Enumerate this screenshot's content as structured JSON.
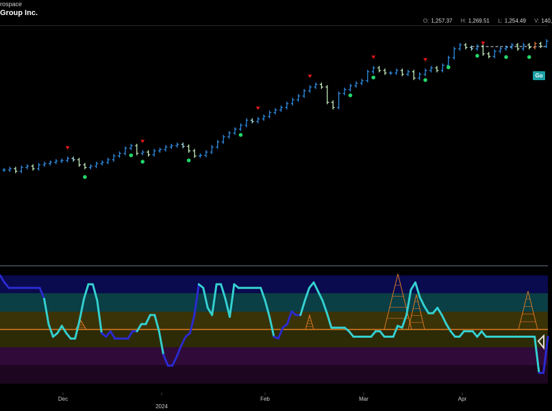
{
  "header": {
    "sector": "rospace",
    "name": "Group Inc.",
    "quote": [
      {
        "key": "O:",
        "value": "1,257.37"
      },
      {
        "key": "H:",
        "value": "1,269.51"
      },
      {
        "key": "L:",
        "value": "1,254.49"
      },
      {
        "key": "V:",
        "value": "140,"
      }
    ]
  },
  "go_label": "Go",
  "colors": {
    "up_blue": "#2f8fe6",
    "weak_up": "#a7e0e6",
    "weak_down": "#c7f0c0",
    "down_orange": "#e07a3a",
    "buy_dot": "#22d66a",
    "sell_arrow": "#e01818",
    "osc_strong": "#2a2ad0",
    "osc_weak": "#34d0d0",
    "zero_line": "#e07a22"
  },
  "chart_data": [
    {
      "type": "line",
      "kind": "ohlc-price",
      "x_tick_labels": [
        "Dec",
        "Feb",
        "Mar",
        "Apr"
      ],
      "year_label": "2024",
      "closes": [
        1060,
        1062,
        1058,
        1064,
        1066,
        1062,
        1068,
        1070,
        1072,
        1074,
        1075,
        1078,
        1076,
        1068,
        1064,
        1066,
        1070,
        1072,
        1076,
        1082,
        1086,
        1094,
        1098,
        1086,
        1088,
        1084,
        1090,
        1092,
        1096,
        1098,
        1100,
        1097,
        1090,
        1082,
        1083,
        1088,
        1096,
        1104,
        1112,
        1118,
        1124,
        1130,
        1138,
        1136,
        1140,
        1144,
        1150,
        1154,
        1158,
        1164,
        1170,
        1176,
        1184,
        1190,
        1194,
        1190,
        1166,
        1158,
        1180,
        1186,
        1192,
        1196,
        1200,
        1214,
        1220,
        1216,
        1212,
        1212,
        1216,
        1210,
        1214,
        1204,
        1210,
        1216,
        1220,
        1216,
        1224,
        1236,
        1250,
        1256,
        1252,
        1250,
        1254,
        1242,
        1238,
        1246,
        1250,
        1252,
        1256,
        1250,
        1256,
        1252,
        1258,
        1254,
        1262
      ],
      "buy_signals": [
        29,
        44,
        49,
        65,
        82,
        121,
        129,
        147,
        155,
        166,
        175,
        183
      ],
      "sell_signals": [
        17,
        38,
        71,
        85,
        102,
        117,
        133
      ],
      "resistance_level": 1262
    },
    {
      "type": "line",
      "kind": "oscillator",
      "zero_line": 0,
      "ylim": [
        -6,
        6
      ],
      "values": [
        6,
        5.2,
        4.6,
        4.6,
        4.6,
        4.6,
        4.6,
        4.6,
        4.6,
        4.6,
        3.4,
        0.6,
        -0.8,
        -0.4,
        0.4,
        -0.4,
        -1,
        -1,
        1,
        3.4,
        5,
        5,
        3.2,
        -0.4,
        -0.8,
        -0.2,
        -1,
        -1,
        -1,
        -1,
        -0.2,
        -0.2,
        0.6,
        0.6,
        1.6,
        1.6,
        -0.2,
        -2.8,
        -4,
        -4,
        -3,
        -1.8,
        -0.8,
        -0.4,
        1.6,
        5,
        4.6,
        2.4,
        1.6,
        5,
        5,
        3.4,
        1.4,
        5,
        4.6,
        4.6,
        4.6,
        4.6,
        4.6,
        4.6,
        3.2,
        1.4,
        -0.8,
        -1,
        0.2,
        0.6,
        2,
        1.6,
        1.6,
        3.2,
        4.6,
        5.2,
        4.2,
        3.2,
        1.8,
        0.2,
        0.2,
        0.2,
        0.2,
        -0.2,
        -0.8,
        -0.8,
        -0.8,
        -0.8,
        -0.8,
        -0.2,
        -0.2,
        -0.8,
        -0.8,
        -0.8,
        0.4,
        0.2,
        1.6,
        4.4,
        5.2,
        3.6,
        2.6,
        1.8,
        1.8,
        2.4,
        1.6,
        0.6,
        -0.2,
        -0.8,
        -0.8,
        -0.2,
        -0.2,
        -0.2,
        -0.8,
        -0.2,
        -0.8,
        -0.8,
        -0.8,
        -0.8,
        -0.8,
        -0.8,
        -0.8,
        -0.8,
        -0.8,
        -0.8,
        -0.8,
        -0.8,
        -4.8,
        -4.8,
        -0.8
      ],
      "weak_mask": [
        0,
        0,
        0,
        0,
        0,
        0,
        0,
        0,
        0,
        0,
        1,
        1,
        1,
        1,
        1,
        1,
        1,
        1,
        1,
        1,
        1,
        1,
        1,
        0,
        0,
        0,
        0,
        0,
        0,
        0,
        0,
        1,
        1,
        1,
        1,
        1,
        1,
        0,
        0,
        0,
        0,
        0,
        0,
        0,
        0,
        1,
        1,
        1,
        1,
        1,
        1,
        1,
        1,
        1,
        1,
        1,
        1,
        1,
        1,
        1,
        1,
        1,
        0,
        0,
        0,
        0,
        0,
        0,
        1,
        1,
        1,
        1,
        1,
        1,
        1,
        1,
        1,
        1,
        1,
        1,
        1,
        1,
        1,
        1,
        1,
        1,
        1,
        1,
        1,
        1,
        1,
        1,
        1,
        1,
        1,
        1,
        1,
        1,
        1,
        1,
        1,
        1,
        1,
        1,
        1,
        1,
        1,
        1,
        1,
        1,
        1,
        1,
        1,
        1,
        1,
        1,
        1,
        1,
        1,
        1,
        1,
        1,
        0,
        0,
        0
      ]
    }
  ]
}
